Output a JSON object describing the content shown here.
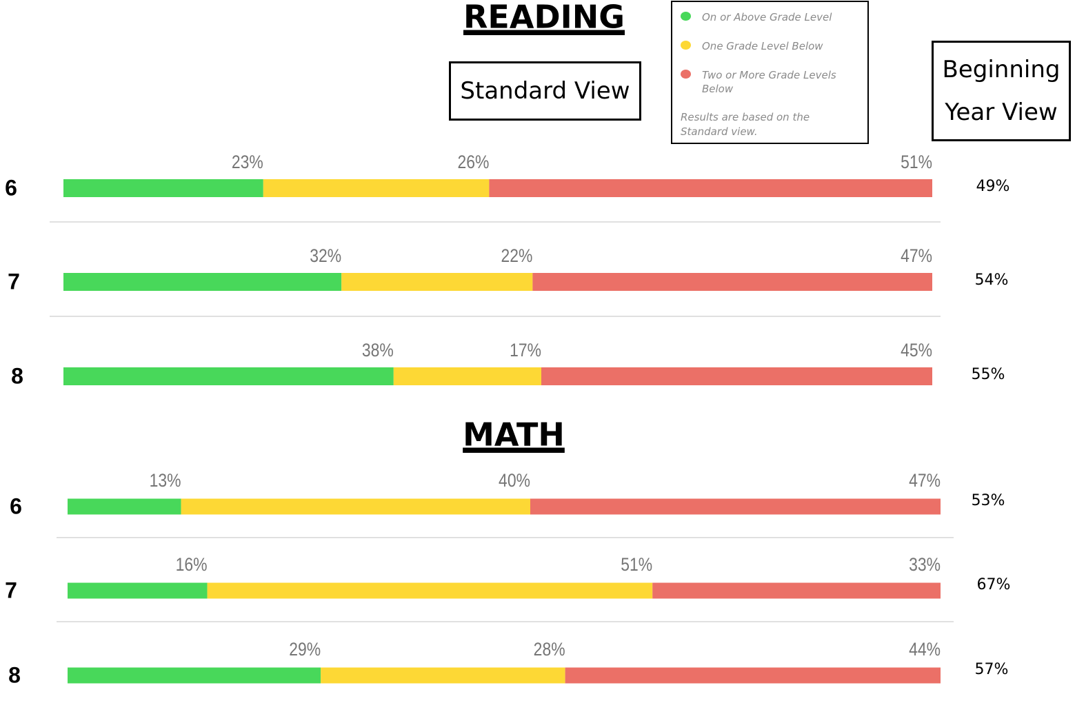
{
  "chart_data": [
    {
      "type": "stacked-bar",
      "title": "READING",
      "subtitle": "Standard View",
      "note": "Results are based on the Standard view.",
      "categories": [
        "6",
        "7",
        "8"
      ],
      "xlim": [
        0,
        100
      ],
      "series": [
        {
          "name": "On or Above Grade Level",
          "color": "#48d85a",
          "values": [
            23,
            32,
            38
          ],
          "value_labels": [
            "23%",
            "32%",
            "38%"
          ]
        },
        {
          "name": "One Grade Level Below",
          "color": "#fdd835",
          "values": [
            26,
            22,
            17
          ],
          "value_labels": [
            "26%",
            "22%",
            "17%"
          ]
        },
        {
          "name": "Two or More Grade Levels Below",
          "color": "#eb7067",
          "values": [
            51,
            47,
            45
          ],
          "value_labels": [
            "51%",
            "47%",
            "45%"
          ]
        }
      ],
      "beginning_year_view": {
        "label": "Beginning Year View",
        "values": [
          49,
          54,
          55
        ],
        "value_labels": [
          "49%",
          "54%",
          "55%"
        ]
      }
    },
    {
      "type": "stacked-bar",
      "title": "MATH",
      "categories": [
        "6",
        "7",
        "8"
      ],
      "xlim": [
        0,
        100
      ],
      "series": [
        {
          "color": "#48d85a",
          "values": [
            13,
            16,
            29
          ],
          "value_labels": [
            "13%",
            "16%",
            "29%"
          ]
        },
        {
          "color": "#fdd835",
          "values": [
            40,
            51,
            28
          ],
          "value_labels": [
            "40%",
            "51%",
            "28%"
          ]
        },
        {
          "color": "#eb7067",
          "values": [
            47,
            33,
            44
          ],
          "value_labels": [
            "47%",
            "33%",
            "44%"
          ]
        }
      ],
      "beginning_year_view": {
        "values": [
          53,
          67,
          57
        ],
        "value_labels": [
          "53%",
          "67%",
          "57%"
        ]
      }
    }
  ]
}
